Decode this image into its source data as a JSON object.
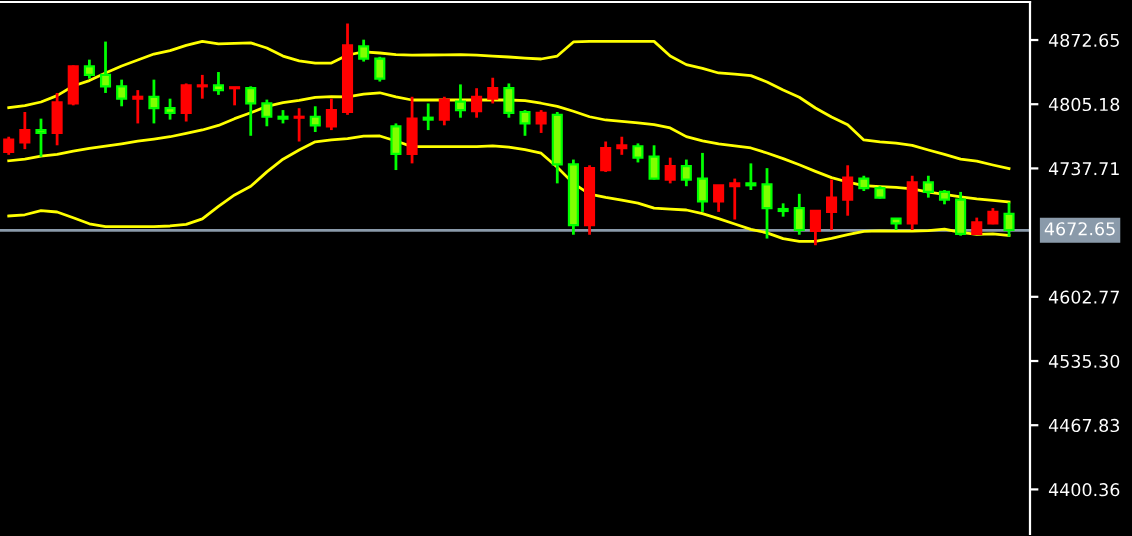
{
  "chart_data": {
    "type": "candlestick",
    "categories": [
      null,
      null,
      null,
      null,
      null,
      null,
      null,
      null,
      null,
      null,
      null,
      null,
      null,
      null,
      null,
      null,
      null,
      null,
      null,
      null,
      null,
      null,
      null,
      null,
      null,
      null,
      null,
      null,
      null,
      null,
      null,
      null,
      null,
      null,
      null,
      null,
      null,
      null,
      null,
      null,
      null,
      null,
      null,
      null,
      null,
      null,
      null,
      null,
      null,
      null,
      null,
      null,
      null,
      null,
      null,
      null,
      null,
      null,
      null,
      null,
      null,
      null,
      null
    ],
    "ohlc": [
      [
        4768,
        4771,
        4752,
        4755
      ],
      [
        4778,
        4797,
        4758,
        4765
      ],
      [
        4775,
        4790,
        4750,
        4778
      ],
      [
        4807,
        4817,
        4762,
        4775
      ],
      [
        4845,
        4846,
        4804,
        4806
      ],
      [
        4836,
        4852,
        4832,
        4845
      ],
      [
        4824,
        4871,
        4817,
        4836
      ],
      [
        4811,
        4831,
        4803,
        4824
      ],
      [
        4813,
        4820,
        4785,
        4811
      ],
      [
        4801,
        4831,
        4785,
        4813
      ],
      [
        4796,
        4811,
        4789,
        4801
      ],
      [
        4825,
        4827,
        4787,
        4796
      ],
      [
        4825,
        4836,
        4811,
        4824
      ],
      [
        4820,
        4839,
        4815,
        4825
      ],
      [
        4823,
        4823,
        4804,
        4822
      ],
      [
        4806,
        4824,
        4772,
        4822
      ],
      [
        4792,
        4810,
        4782,
        4806
      ],
      [
        4790,
        4799,
        4785,
        4792
      ],
      [
        4792,
        4801,
        4766,
        4791
      ],
      [
        4783,
        4803,
        4776,
        4792
      ],
      [
        4799,
        4811,
        4778,
        4782
      ],
      [
        4867,
        4890,
        4794,
        4797
      ],
      [
        4853,
        4873,
        4850,
        4866
      ],
      [
        4832,
        4855,
        4829,
        4853
      ],
      [
        4753,
        4785,
        4736,
        4782
      ],
      [
        4790,
        4813,
        4743,
        4753
      ],
      [
        4789,
        4806,
        4778,
        4791
      ],
      [
        4810,
        4813,
        4783,
        4789
      ],
      [
        4799,
        4826,
        4791,
        4808
      ],
      [
        4813,
        4822,
        4791,
        4798
      ],
      [
        4822,
        4833,
        4806,
        4811
      ],
      [
        4796,
        4827,
        4791,
        4822
      ],
      [
        4785,
        4799,
        4772,
        4797
      ],
      [
        4796,
        4799,
        4775,
        4785
      ],
      [
        4742,
        4797,
        4722,
        4794
      ],
      [
        4678,
        4747,
        4668,
        4742
      ],
      [
        4738,
        4741,
        4668,
        4678
      ],
      [
        4759,
        4766,
        4734,
        4736
      ],
      [
        4762,
        4771,
        4752,
        4759
      ],
      [
        4749,
        4764,
        4744,
        4761
      ],
      [
        4727,
        4762,
        4726,
        4750
      ],
      [
        4740,
        4749,
        4722,
        4726
      ],
      [
        4726,
        4747,
        4719,
        4740
      ],
      [
        4703,
        4754,
        4692,
        4727
      ],
      [
        4720,
        4720,
        4692,
        4703
      ],
      [
        4722,
        4727,
        4684,
        4719
      ],
      [
        4720,
        4743,
        4715,
        4722
      ],
      [
        4696,
        4738,
        4664,
        4721
      ],
      [
        4693,
        4701,
        4687,
        4695
      ],
      [
        4673,
        4711,
        4668,
        4696
      ],
      [
        4693,
        4693,
        4657,
        4672
      ],
      [
        4707,
        4726,
        4673,
        4692
      ],
      [
        4728,
        4741,
        4688,
        4705
      ],
      [
        4717,
        4730,
        4714,
        4727
      ],
      [
        4707,
        4719,
        4706,
        4717
      ],
      [
        4680,
        4685,
        4673,
        4685
      ],
      [
        4723,
        4730,
        4673,
        4680
      ],
      [
        4713,
        4730,
        4707,
        4723
      ],
      [
        4705,
        4715,
        4700,
        4713
      ],
      [
        4669,
        4713,
        4667,
        4705
      ],
      [
        4681,
        4686,
        4669,
        4669
      ],
      [
        4692,
        4696,
        4679,
        4680
      ],
      [
        4673,
        4702,
        4666,
        4690
      ]
    ],
    "colors": [
      "#ff0000",
      "#ff0000",
      "#00ff00",
      "#ff0000",
      "#ff0000",
      "#00ff00",
      "#00ff00",
      "#00ff00",
      "#ff0000",
      "#00ff00",
      "#00ff00",
      "#ff0000",
      "#ff0000",
      "#00ff00",
      "#ff0000",
      "#00ff00",
      "#00ff00",
      "#00ff00",
      "#ff0000",
      "#00ff00",
      "#ff0000",
      "#ff0000",
      "#00ff00",
      "#00ff00",
      "#00ff00",
      "#ff0000",
      "#00ff00",
      "#ff0000",
      "#00ff00",
      "#ff0000",
      "#ff0000",
      "#00ff00",
      "#00ff00",
      "#ff0000",
      "#00ff00",
      "#00ff00",
      "#ff0000",
      "#ff0000",
      "#ff0000",
      "#00ff00",
      "#00ff00",
      "#ff0000",
      "#00ff00",
      "#00ff00",
      "#ff0000",
      "#ff0000",
      "#00ff00",
      "#00ff00",
      "#00ff00",
      "#00ff00",
      "#ff0000",
      "#ff0000",
      "#ff0000",
      "#00ff00",
      "#00ff00",
      "#00ff00",
      "#ff0000",
      "#00ff00",
      "#00ff00",
      "#00ff00",
      "#ff0000",
      "#ff0000",
      "#00ff00"
    ],
    "series": [
      {
        "type": "line",
        "color": "#ffff00",
        "values": [
          4801.6,
          4803.7,
          4807.5,
          4814.2,
          4824.3,
          4830.0,
          4838.0,
          4845.3,
          4851.6,
          4857.9,
          4861.5,
          4867.0,
          4871.2,
          4868.5,
          4869.1,
          4869.7,
          4864.3,
          4855.8,
          4850.8,
          4848.3,
          4848.5,
          4856.9,
          4860.1,
          4859.0,
          4857.3,
          4856.7,
          4856.9,
          4857.1,
          4857.3,
          4856.7,
          4855.6,
          4854.8,
          4853.7,
          4852.7,
          4855.8,
          4870.6,
          4871.2,
          4871.2,
          4871.2,
          4871.2,
          4871.2,
          4855.8,
          4846.8,
          4842.8,
          4838.0,
          4836.9,
          4835.2,
          4828.5,
          4820.1,
          4812.5,
          4801.2,
          4791.7,
          4783.7,
          4767.6,
          4765.5,
          4764.4,
          4761.9,
          4757.1,
          4752.4,
          4747.4,
          4745.3,
          4741.3,
          4737.5
        ]
      },
      {
        "type": "line",
        "color": "#ffff00",
        "values": [
          4745.7,
          4747.4,
          4750.7,
          4752.4,
          4755.8,
          4758.7,
          4761.1,
          4763.6,
          4766.3,
          4768.6,
          4771.0,
          4774.5,
          4778.1,
          4782.9,
          4790.0,
          4796.2,
          4802.9,
          4806.9,
          4809.2,
          4812.3,
          4813.2,
          4812.8,
          4815.9,
          4817.2,
          4812.8,
          4809.6,
          4809.6,
          4809.6,
          4809.6,
          4809.6,
          4809.6,
          4809.6,
          4809.0,
          4806.2,
          4802.9,
          4797.8,
          4792.0,
          4788.6,
          4787.1,
          4785.6,
          4783.7,
          4780.2,
          4771.1,
          4766.7,
          4763.4,
          4761.3,
          4759.2,
          4753.9,
          4748.0,
          4741.5,
          4734.6,
          4728.0,
          4723.4,
          4719.6,
          4718.6,
          4717.7,
          4716.3,
          4712.9,
          4710.4,
          4707.9,
          4705.8,
          4704.1,
          4702.4
        ]
      },
      {
        "type": "line",
        "color": "#ffff00",
        "values": [
          4687.7,
          4689.0,
          4693.4,
          4691.9,
          4685.8,
          4679.5,
          4676.5,
          4676.5,
          4676.5,
          4676.5,
          4677.2,
          4678.9,
          4684.7,
          4697.8,
          4709.8,
          4719.0,
          4734.1,
          4747.4,
          4757.1,
          4765.7,
          4767.6,
          4769.0,
          4771.6,
          4771.8,
          4766.5,
          4760.6,
          4760.6,
          4760.6,
          4760.6,
          4760.6,
          4761.5,
          4760.2,
          4757.5,
          4753.7,
          4739.0,
          4722.0,
          4710.6,
          4707.2,
          4704.3,
          4701.3,
          4695.9,
          4695.0,
          4694.0,
          4690.2,
          4684.9,
          4679.3,
          4673.6,
          4670.0,
          4663.9,
          4661.0,
          4661.0,
          4664.1,
          4668.1,
          4671.5,
          4672.1,
          4671.9,
          4671.7,
          4672.3,
          4673.8,
          4670.4,
          4668.4,
          4669.0,
          4667.3
        ]
      }
    ],
    "ylim": [
      4353.5,
      4912.6
    ],
    "yticks": [
      {
        "value": 4872.65,
        "label": "4872.65"
      },
      {
        "value": 4805.18,
        "label": "4805.18"
      },
      {
        "value": 4737.71,
        "label": "4737.71"
      },
      {
        "value": 4602.77,
        "label": "4602.77"
      },
      {
        "value": 4535.3,
        "label": "4535.30"
      },
      {
        "value": 4467.83,
        "label": "4467.83"
      },
      {
        "value": 4400.36,
        "label": "4400.36"
      }
    ],
    "ref_lines": [
      {
        "axis": "y",
        "value": 4672.65,
        "label": "4672.65",
        "color": "#8a9aaa"
      }
    ],
    "tick_labels": "y",
    "grid": false
  }
}
